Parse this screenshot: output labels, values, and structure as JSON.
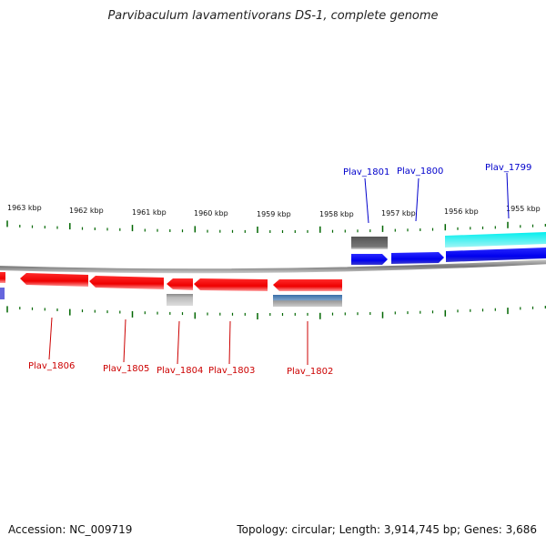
{
  "title": "Parvibaculum lavamentivorans DS-1, complete genome",
  "footer": {
    "accession": "Accession: NC_009719",
    "stats": "Topology: circular; Length: 3,914,745 bp; Genes: 3,686"
  },
  "ruler_labels": [
    "1963 kbp",
    "1962 kbp",
    "1961 kbp",
    "1960 kbp",
    "1959 kbp",
    "1958 kbp",
    "1957 kbp",
    "1956 kbp",
    "1955 kbp"
  ],
  "genes_forward": [
    {
      "label": "Plav_1801",
      "color": "#0000cc"
    },
    {
      "label": "Plav_1800",
      "color": "#0000cc"
    },
    {
      "label": "Plav_1799",
      "color": "#0000cc"
    }
  ],
  "genes_reverse": [
    {
      "label": "Plav_1806",
      "color": "#cc0000"
    },
    {
      "label": "Plav_1805",
      "color": "#cc0000"
    },
    {
      "label": "Plav_1804",
      "color": "#cc0000"
    },
    {
      "label": "Plav_1803",
      "color": "#cc0000"
    },
    {
      "label": "Plav_1802",
      "color": "#cc0000"
    }
  ],
  "colors": {
    "forward_gene": "#0000ee",
    "reverse_gene": "#ee0000",
    "ruler_tick": "#006600",
    "backbone": "#888888",
    "cds_cyan": "#00dddd",
    "cds_gray": "#666666",
    "cds_steelblue": "#4a7fb8",
    "cds_lightgray": "#aaaaaa"
  }
}
